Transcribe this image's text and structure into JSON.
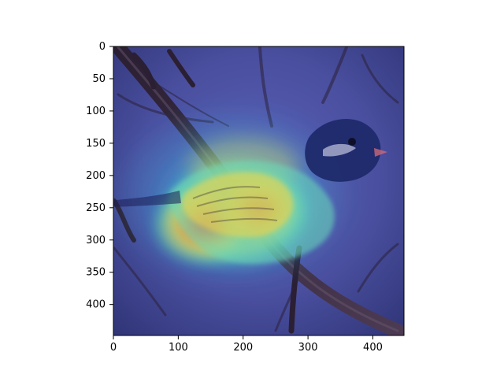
{
  "image_content": {
    "subject": "small songbird perched on a thin branch",
    "overlay": "semi-transparent heatmap (blue to red)",
    "hotspot": "wing and body region"
  },
  "axes": {
    "x_ticks": [
      "0",
      "100",
      "200",
      "300",
      "400"
    ],
    "y_ticks": [
      "0",
      "50",
      "100",
      "150",
      "200",
      "250",
      "300",
      "350",
      "400"
    ],
    "x_tick_values": [
      0,
      100,
      200,
      300,
      400
    ],
    "y_tick_values": [
      0,
      50,
      100,
      150,
      200,
      250,
      300,
      350,
      400
    ],
    "x_range": [
      0,
      448
    ],
    "y_range": [
      0,
      448
    ]
  },
  "colors": {
    "background": "#ffffff",
    "base_overlay": "#4a4f9f",
    "bird_head": "#1e2a6a",
    "heat_red": "#ff3a2a",
    "heat_yellow": "#f2e04a",
    "heat_green": "#6fe09a",
    "heat_cyan": "#39d6d6",
    "branch": "#3b2a3f"
  }
}
